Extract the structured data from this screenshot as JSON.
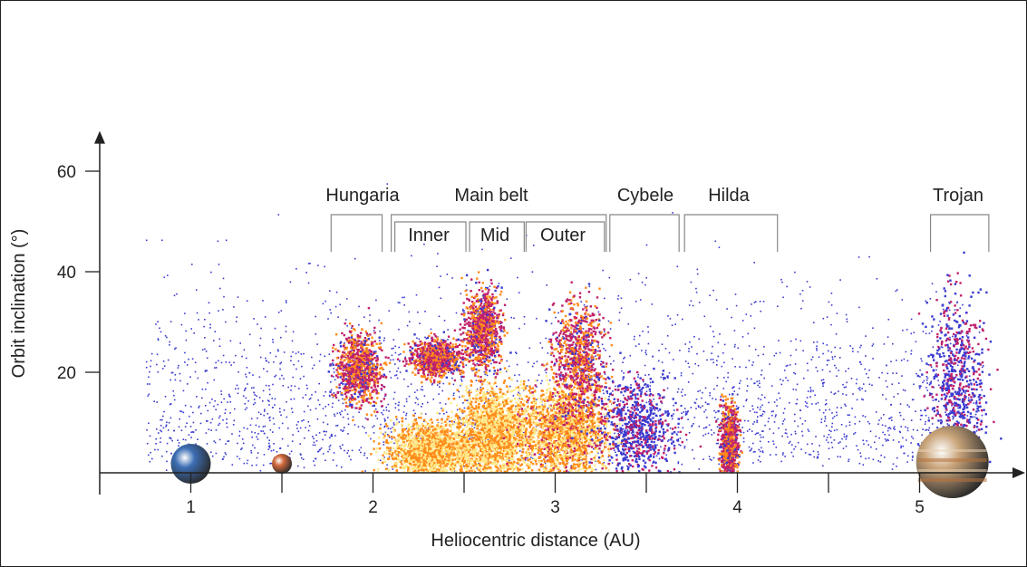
{
  "chart_data": {
    "type": "scatter",
    "xlabel": "Heliocentric distance (AU)",
    "ylabel": "Orbit inclination (°)",
    "xlim": [
      0.5,
      5.5
    ],
    "ylim": [
      0,
      68
    ],
    "x_ticks": [
      1,
      2,
      3,
      4,
      5
    ],
    "y_ticks": [
      20,
      40,
      60
    ],
    "grid": false,
    "colors": {
      "sparse": "#3a3ad0",
      "medium": "#c0206a",
      "dense": "#ff8c1a",
      "core": "#ffe98a"
    },
    "groups": [
      {
        "label": "Hungaria",
        "x_range": [
          1.78,
          2.05
        ],
        "y_range": [
          16,
          27
        ]
      },
      {
        "label": "Main belt",
        "x_range": [
          2.1,
          3.28
        ],
        "y_range": [
          0,
          38
        ]
      },
      {
        "label": "Inner",
        "x_range": [
          2.1,
          2.5
        ],
        "y_range": [
          0,
          26
        ]
      },
      {
        "label": "Mid",
        "x_range": [
          2.5,
          2.83
        ],
        "y_range": [
          0,
          37
        ]
      },
      {
        "label": "Outer",
        "x_range": [
          2.83,
          3.28
        ],
        "y_range": [
          0,
          31
        ]
      },
      {
        "label": "Cybele",
        "x_range": [
          3.3,
          3.65
        ],
        "y_range": [
          0,
          18
        ]
      },
      {
        "label": "Hilda",
        "x_range": [
          3.7,
          4.2
        ],
        "y_range": [
          0,
          17
        ]
      },
      {
        "label": "Trojan",
        "x_range": [
          5.05,
          5.38
        ],
        "y_range": [
          0,
          40
        ]
      }
    ],
    "clusters": [
      {
        "name": "Hungaria",
        "x": 1.92,
        "y": 21,
        "sx": 0.06,
        "sy": 3.5,
        "density": "medium"
      },
      {
        "name": "Inner",
        "x": 2.32,
        "y": 4.5,
        "sx": 0.12,
        "sy": 2.8,
        "density": "core"
      },
      {
        "name": "Inner high",
        "x": 2.35,
        "y": 23,
        "sx": 0.07,
        "sy": 1.8,
        "density": "medium"
      },
      {
        "name": "Mid",
        "x": 2.67,
        "y": 8,
        "sx": 0.1,
        "sy": 4.5,
        "density": "core"
      },
      {
        "name": "Mid high",
        "x": 2.6,
        "y": 29,
        "sx": 0.05,
        "sy": 4,
        "density": "medium"
      },
      {
        "name": "Outer",
        "x": 3.05,
        "y": 8,
        "sx": 0.12,
        "sy": 4.5,
        "density": "dense"
      },
      {
        "name": "Outer high",
        "x": 3.13,
        "y": 23,
        "sx": 0.07,
        "sy": 6,
        "density": "medium"
      },
      {
        "name": "Cybele",
        "x": 3.45,
        "y": 9,
        "sx": 0.1,
        "sy": 5,
        "density": "sparse"
      },
      {
        "name": "Hilda",
        "x": 3.95,
        "y": 6,
        "sx": 0.025,
        "sy": 4,
        "density": "medium"
      },
      {
        "name": "Trojan",
        "x": 5.2,
        "y": 18,
        "sx": 0.08,
        "sy": 9,
        "density": "sparse"
      }
    ],
    "planets": [
      {
        "name": "Earth",
        "x": 1.0,
        "color": "#3c6eb4"
      },
      {
        "name": "Mars",
        "x": 1.5,
        "color": "#d2693c"
      },
      {
        "name": "Jupiter",
        "x": 5.18,
        "color": "#c9a47a"
      }
    ]
  }
}
